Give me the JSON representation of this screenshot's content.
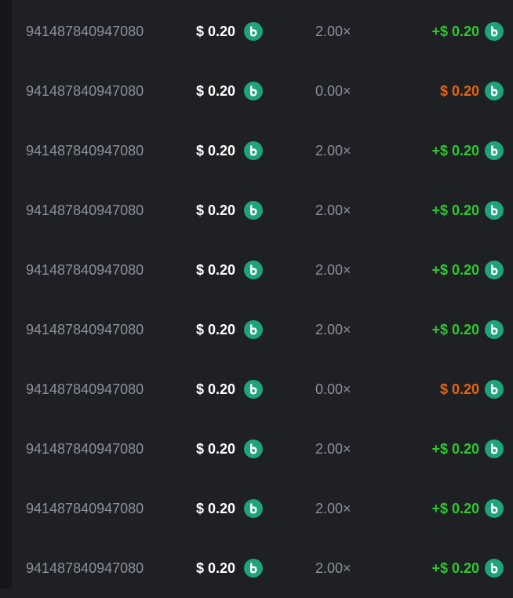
{
  "table": {
    "rows": [
      [
        "941487840947080",
        "$ 0.20",
        "2.00×",
        "+$ 0.20"
      ],
      [
        "941487840947080",
        "$ 0.20",
        "0.00×",
        "$ 0.20"
      ],
      [
        "941487840947080",
        "$ 0.20",
        "2.00×",
        "+$ 0.20"
      ],
      [
        "941487840947080",
        "$ 0.20",
        "2.00×",
        "+$ 0.20"
      ],
      [
        "941487840947080",
        "$ 0.20",
        "2.00×",
        "+$ 0.20"
      ],
      [
        "941487840947080",
        "$ 0.20",
        "2.00×",
        "+$ 0.20"
      ],
      [
        "941487840947080",
        "$ 0.20",
        "0.00×",
        "$ 0.20"
      ],
      [
        "941487840947080",
        "$ 0.20",
        "2.00×",
        "+$ 0.20"
      ],
      [
        "941487840947080",
        "$ 0.20",
        "2.00×",
        "+$ 0.20"
      ],
      [
        "941487840947080",
        "$ 0.20",
        "2.00×",
        "+$ 0.20"
      ]
    ]
  }
}
